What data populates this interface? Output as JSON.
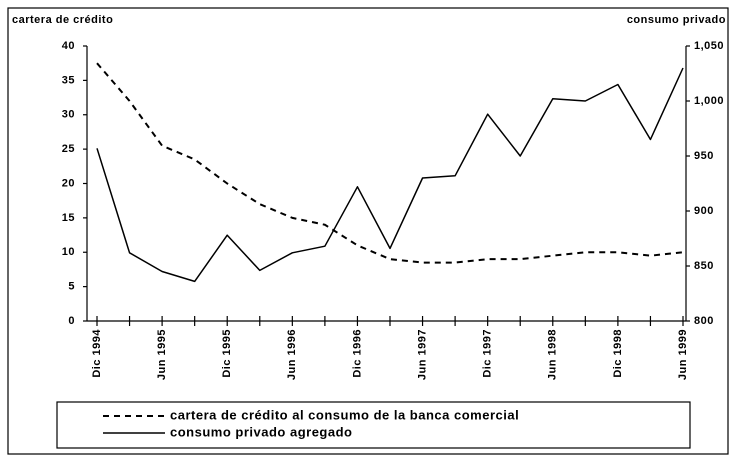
{
  "chart_data": {
    "type": "line",
    "y_label": "cartera de crédito",
    "y2_label": "consumo privado",
    "categories": [
      "Dic 1994",
      null,
      "Jun 1995",
      null,
      "Dic 1995",
      null,
      "Jun 1996",
      null,
      "Dic 1996",
      null,
      "Jun 1997",
      null,
      "Dic 1997",
      null,
      "Jun 1998",
      null,
      "Dic 1998",
      null,
      "Jun 1999"
    ],
    "series": [
      {
        "name": "cartera de crédito al consumo de la banca comercial",
        "color": "#000000",
        "dash": true,
        "values": [
          37.5,
          32,
          25.5,
          23.5,
          20,
          17,
          15,
          14,
          11,
          9,
          8.5,
          8.5,
          9,
          9,
          9.5,
          10,
          10,
          9.5,
          10
        ]
      },
      {
        "name": "consumo privado agregado",
        "color": "#000000",
        "dash": false,
        "axis": "y2",
        "values": [
          957,
          862,
          845,
          836,
          878,
          846,
          862,
          868,
          922,
          866,
          930,
          932,
          988,
          950,
          1002,
          1000,
          1015,
          965,
          1030
        ]
      }
    ],
    "ylim": [
      0,
      40
    ],
    "yticks": [
      0,
      5,
      10,
      15,
      20,
      25,
      30,
      35,
      40
    ],
    "y2lim": [
      800,
      1050
    ],
    "y2ticks": [
      800,
      850,
      900,
      950,
      {
        "value": 1000,
        "label": "1,000"
      },
      {
        "value": 1050,
        "label": "1,050"
      }
    ],
    "grid": false
  }
}
